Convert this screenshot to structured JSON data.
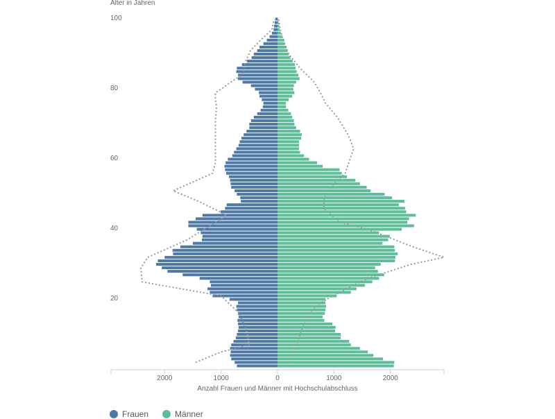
{
  "chart_data": {
    "type": "bar",
    "orientation": "horizontal",
    "subtype": "population-pyramid",
    "ylabel": "Alter in Jahren",
    "xlabel": "Anzahl Frauen und Männer mit Hochschulabschluss",
    "ylim": [
      0,
      100
    ],
    "xlim": [
      -2950,
      2950
    ],
    "y_ticks": [
      20,
      40,
      60,
      80,
      100
    ],
    "x_ticks": [
      -2000,
      -1000,
      0,
      1000,
      2000
    ],
    "x_tick_labels": [
      "2000",
      "1000",
      "0",
      "1000",
      "2000"
    ],
    "ages": [
      0,
      1,
      2,
      3,
      4,
      5,
      6,
      7,
      8,
      9,
      10,
      11,
      12,
      13,
      14,
      15,
      16,
      17,
      18,
      19,
      20,
      21,
      22,
      23,
      24,
      25,
      26,
      27,
      28,
      29,
      30,
      31,
      32,
      33,
      34,
      35,
      36,
      37,
      38,
      39,
      40,
      41,
      42,
      43,
      44,
      45,
      46,
      47,
      48,
      49,
      50,
      51,
      52,
      53,
      54,
      55,
      56,
      57,
      58,
      59,
      60,
      61,
      62,
      63,
      64,
      65,
      66,
      67,
      68,
      69,
      70,
      71,
      72,
      73,
      74,
      75,
      76,
      77,
      78,
      79,
      80,
      81,
      82,
      83,
      84,
      85,
      86,
      87,
      88,
      89,
      90,
      91,
      92,
      93,
      94,
      95,
      96,
      97,
      98,
      99
    ],
    "series": [
      {
        "name": "Frauen",
        "color": "#4e79a7",
        "values": [
          720,
          760,
          820,
          840,
          830,
          840,
          820,
          780,
          740,
          720,
          700,
          690,
          700,
          710,
          690,
          700,
          720,
          730,
          700,
          850,
          1150,
          1200,
          1240,
          1180,
          1200,
          1380,
          1680,
          1950,
          2050,
          2150,
          2120,
          2000,
          1850,
          1860,
          1720,
          1500,
          1340,
          1330,
          1360,
          1430,
          1580,
          1580,
          1450,
          1330,
          1010,
          930,
          900,
          650,
          660,
          720,
          760,
          820,
          830,
          840,
          860,
          910,
          930,
          940,
          920,
          880,
          800,
          770,
          730,
          690,
          670,
          640,
          600,
          550,
          500,
          500,
          470,
          420,
          360,
          300,
          260,
          250,
          280,
          320,
          330,
          400,
          470,
          620,
          700,
          700,
          730,
          720,
          630,
          540,
          460,
          420,
          360,
          320,
          250,
          190,
          140,
          100,
          70,
          60,
          50,
          40
        ]
      },
      {
        "name": "Männer",
        "color": "#5dbf99",
        "values": [
          2060,
          2070,
          1870,
          1700,
          1600,
          1460,
          1300,
          1270,
          1120,
          1120,
          1020,
          1030,
          970,
          830,
          800,
          840,
          850,
          860,
          850,
          850,
          1050,
          1300,
          1400,
          1550,
          1680,
          1800,
          1890,
          1780,
          1730,
          1830,
          2080,
          2090,
          2130,
          2080,
          2070,
          1860,
          1960,
          1990,
          1800,
          2200,
          2420,
          2300,
          2330,
          2450,
          2280,
          2260,
          2150,
          2250,
          2030,
          1900,
          1650,
          1580,
          1460,
          1380,
          1230,
          1140,
          1100,
          800,
          700,
          560,
          470,
          400,
          380,
          380,
          380,
          420,
          430,
          400,
          330,
          300,
          290,
          260,
          240,
          190,
          150,
          150,
          200,
          260,
          300,
          280,
          290,
          330,
          390,
          370,
          340,
          320,
          310,
          270,
          230,
          200,
          180,
          160,
          130,
          120,
          80,
          60,
          40,
          30,
          20,
          10
        ]
      }
    ],
    "reference_lines": [
      {
        "style": "dotted",
        "color": "#999999",
        "points": [
          [
            -1450,
            1
          ],
          [
            -1000,
            4
          ],
          [
            -500,
            6
          ],
          [
            -550,
            10
          ],
          [
            -680,
            15
          ],
          [
            -1000,
            20
          ],
          [
            -2400,
            24
          ],
          [
            -2420,
            28
          ],
          [
            -2300,
            31
          ],
          [
            -1600,
            36
          ],
          [
            -900,
            43
          ],
          [
            -1400,
            47
          ],
          [
            -1850,
            50
          ],
          [
            -1150,
            55
          ],
          [
            -1100,
            58
          ],
          [
            -1100,
            62
          ],
          [
            -1100,
            66
          ],
          [
            -1100,
            70
          ],
          [
            -1080,
            74
          ],
          [
            -1100,
            76
          ],
          [
            -1100,
            78
          ],
          [
            -1000,
            79
          ],
          [
            -830,
            81
          ],
          [
            -630,
            83
          ],
          [
            -560,
            87
          ],
          [
            -480,
            90
          ],
          [
            -300,
            93
          ],
          [
            -100,
            96
          ],
          [
            -60,
            99
          ]
        ]
      },
      {
        "side": "Männer",
        "style": "dotted",
        "color": "#999999",
        "points": [
          [
            220,
            1
          ],
          [
            320,
            5
          ],
          [
            420,
            10
          ],
          [
            560,
            15
          ],
          [
            760,
            18
          ],
          [
            1100,
            21
          ],
          [
            1600,
            25
          ],
          [
            2370,
            29
          ],
          [
            2950,
            31
          ],
          [
            2400,
            34
          ],
          [
            1600,
            39
          ],
          [
            1100,
            41
          ],
          [
            820,
            45
          ],
          [
            830,
            48
          ],
          [
            1000,
            52
          ],
          [
            1200,
            55
          ],
          [
            1350,
            62
          ],
          [
            1250,
            66
          ],
          [
            1060,
            71
          ],
          [
            850,
            75
          ],
          [
            760,
            78
          ],
          [
            650,
            81
          ],
          [
            400,
            85
          ],
          [
            200,
            89
          ],
          [
            100,
            93
          ],
          [
            50,
            96
          ],
          [
            20,
            99
          ]
        ]
      }
    ],
    "legend": {
      "placement": "bottom-left",
      "items": [
        {
          "label": "Frauen",
          "color": "#4e79a7"
        },
        {
          "label": "Männer",
          "color": "#5dbf99"
        }
      ]
    }
  }
}
